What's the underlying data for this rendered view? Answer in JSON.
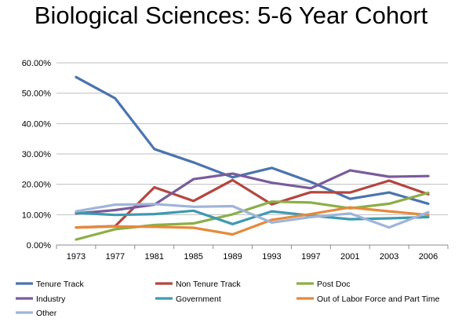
{
  "chart_data": {
    "type": "line",
    "title": "Biological Sciences: 5-6 Year Cohort",
    "xlabel": "",
    "ylabel": "",
    "ylim": [
      0,
      0.6
    ],
    "yticks": [
      "0.00%",
      "10.00%",
      "20.00%",
      "30.00%",
      "40.00%",
      "50.00%",
      "60.00%"
    ],
    "grid": true,
    "legend_position": "bottom",
    "categories": [
      "1973",
      "1977",
      "1981",
      "1985",
      "1989",
      "1993",
      "1997",
      "2001",
      "2003",
      "2006"
    ],
    "series": [
      {
        "name": "Tenure Track",
        "color": "#4a74ae",
        "values": [
          0.553,
          0.483,
          0.316,
          0.272,
          0.223,
          0.254,
          0.208,
          0.152,
          0.173,
          0.136
        ]
      },
      {
        "name": "Non Tenure Track",
        "color": "#b4463f",
        "values": [
          0.058,
          0.062,
          0.19,
          0.145,
          0.214,
          0.134,
          0.174,
          0.173,
          0.212,
          0.167
        ]
      },
      {
        "name": "Post Doc",
        "color": "#8cae46",
        "values": [
          0.018,
          0.052,
          0.066,
          0.071,
          0.101,
          0.143,
          0.14,
          0.121,
          0.136,
          0.172
        ]
      },
      {
        "name": "Industry",
        "color": "#7a5b9b",
        "values": [
          0.104,
          0.115,
          0.133,
          0.217,
          0.235,
          0.205,
          0.187,
          0.246,
          0.225,
          0.227
        ]
      },
      {
        "name": "Government",
        "color": "#3d9ab0",
        "values": [
          0.106,
          0.099,
          0.102,
          0.113,
          0.069,
          0.111,
          0.097,
          0.085,
          0.088,
          0.092
        ]
      },
      {
        "name": "Out of Labor Force and Part Time",
        "color": "#e6893a",
        "values": [
          0.058,
          0.061,
          0.06,
          0.057,
          0.035,
          0.083,
          0.102,
          0.124,
          0.111,
          0.099
        ]
      },
      {
        "name": "Other",
        "color": "#9fb4d8",
        "values": [
          0.111,
          0.133,
          0.135,
          0.126,
          0.128,
          0.074,
          0.092,
          0.104,
          0.058,
          0.108
        ]
      }
    ]
  }
}
